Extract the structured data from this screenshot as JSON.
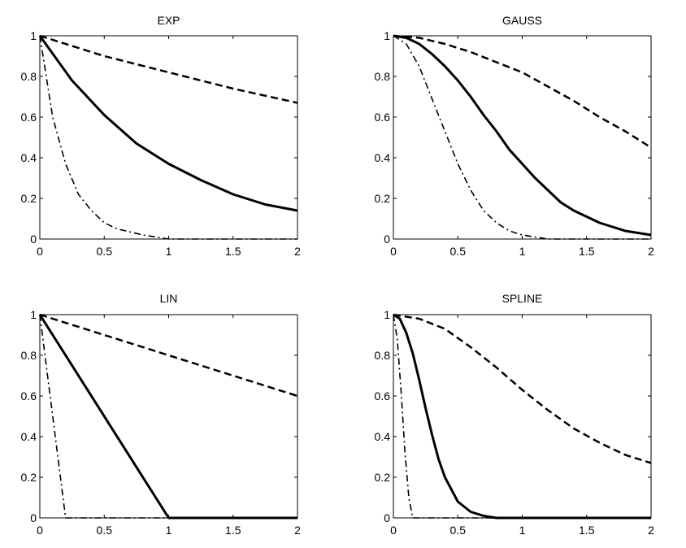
{
  "chart_data": [
    {
      "type": "line",
      "title": "EXP",
      "xlim": [
        0,
        2
      ],
      "ylim": [
        0,
        1
      ],
      "xticks": [
        "0",
        "0.5",
        "1",
        "1.5",
        "2"
      ],
      "yticks": [
        "0",
        "0.2",
        "0.4",
        "0.6",
        "0.8",
        "1"
      ],
      "grid": false,
      "series": [
        {
          "name": "solid",
          "style": "solid",
          "x": [
            0,
            0.25,
            0.5,
            0.75,
            1.0,
            1.25,
            1.5,
            1.75,
            2.0
          ],
          "y": [
            1.0,
            0.78,
            0.61,
            0.47,
            0.37,
            0.29,
            0.22,
            0.17,
            0.14
          ]
        },
        {
          "name": "dashed",
          "style": "dashed",
          "x": [
            0,
            0.5,
            1.0,
            1.5,
            2.0
          ],
          "y": [
            1.0,
            0.9,
            0.82,
            0.74,
            0.67
          ]
        },
        {
          "name": "dashdot",
          "style": "dashdot",
          "x": [
            0,
            0.1,
            0.2,
            0.3,
            0.4,
            0.5,
            0.6,
            0.8,
            1.0,
            1.5,
            2.0
          ],
          "y": [
            1.0,
            0.6,
            0.37,
            0.22,
            0.14,
            0.08,
            0.05,
            0.02,
            0.0,
            0.0,
            0.0
          ]
        }
      ]
    },
    {
      "type": "line",
      "title": "GAUSS",
      "xlim": [
        0,
        2
      ],
      "ylim": [
        0,
        1
      ],
      "xticks": [
        "0",
        "0.5",
        "1",
        "1.5",
        "2"
      ],
      "yticks": [
        "0",
        "0.2",
        "0.4",
        "0.6",
        "0.8",
        "1"
      ],
      "grid": false,
      "series": [
        {
          "name": "solid",
          "style": "solid",
          "x": [
            0,
            0.1,
            0.2,
            0.3,
            0.4,
            0.5,
            0.6,
            0.7,
            0.8,
            0.9,
            1.0,
            1.1,
            1.2,
            1.3,
            1.4,
            1.5,
            1.6,
            1.7,
            1.8,
            1.9,
            2.0
          ],
          "y": [
            1.0,
            0.99,
            0.96,
            0.91,
            0.85,
            0.78,
            0.7,
            0.61,
            0.53,
            0.44,
            0.37,
            0.3,
            0.24,
            0.18,
            0.14,
            0.11,
            0.08,
            0.06,
            0.04,
            0.03,
            0.02
          ]
        },
        {
          "name": "dashed",
          "style": "dashed",
          "x": [
            0,
            0.2,
            0.4,
            0.6,
            0.8,
            1.0,
            1.2,
            1.4,
            1.6,
            1.8,
            2.0
          ],
          "y": [
            1.0,
            0.99,
            0.96,
            0.92,
            0.87,
            0.82,
            0.75,
            0.68,
            0.6,
            0.53,
            0.45
          ]
        },
        {
          "name": "dashdot",
          "style": "dashdot",
          "x": [
            0,
            0.1,
            0.2,
            0.3,
            0.4,
            0.5,
            0.6,
            0.7,
            0.8,
            0.9,
            1.0,
            1.2,
            1.5,
            2.0
          ],
          "y": [
            1.0,
            0.96,
            0.85,
            0.69,
            0.53,
            0.37,
            0.24,
            0.14,
            0.08,
            0.04,
            0.02,
            0.0,
            0.0,
            0.0
          ]
        }
      ]
    },
    {
      "type": "line",
      "title": "LIN",
      "xlim": [
        0,
        2
      ],
      "ylim": [
        0,
        1
      ],
      "xticks": [
        "0",
        "0.5",
        "1",
        "1.5",
        "2"
      ],
      "yticks": [
        "0",
        "0.2",
        "0.4",
        "0.6",
        "0.8",
        "1"
      ],
      "grid": false,
      "series": [
        {
          "name": "solid",
          "style": "solid",
          "x": [
            0,
            1.0,
            2.0
          ],
          "y": [
            1.0,
            0.0,
            0.0
          ]
        },
        {
          "name": "dashed",
          "style": "dashed",
          "x": [
            0,
            2.0
          ],
          "y": [
            1.0,
            0.6
          ]
        },
        {
          "name": "dashdot",
          "style": "dashdot",
          "x": [
            0,
            0.2,
            2.0
          ],
          "y": [
            1.0,
            0.0,
            0.0
          ]
        }
      ]
    },
    {
      "type": "line",
      "title": "SPLINE",
      "xlim": [
        0,
        2
      ],
      "ylim": [
        0,
        1
      ],
      "xticks": [
        "0",
        "0.5",
        "1",
        "1.5",
        "2"
      ],
      "yticks": [
        "0",
        "0.2",
        "0.4",
        "0.6",
        "0.8",
        "1"
      ],
      "grid": false,
      "series": [
        {
          "name": "solid",
          "style": "solid",
          "x": [
            0,
            0.05,
            0.1,
            0.15,
            0.2,
            0.25,
            0.3,
            0.35,
            0.4,
            0.5,
            0.6,
            0.7,
            0.8,
            0.9,
            1.0,
            1.5,
            2.0
          ],
          "y": [
            1.0,
            0.98,
            0.91,
            0.81,
            0.68,
            0.54,
            0.41,
            0.29,
            0.2,
            0.08,
            0.03,
            0.01,
            0.0,
            0.0,
            0.0,
            0.0,
            0.0
          ]
        },
        {
          "name": "dashed",
          "style": "dashed",
          "x": [
            0,
            0.2,
            0.4,
            0.6,
            0.8,
            1.0,
            1.2,
            1.4,
            1.6,
            1.8,
            2.0
          ],
          "y": [
            1.0,
            0.98,
            0.93,
            0.84,
            0.74,
            0.63,
            0.53,
            0.44,
            0.37,
            0.31,
            0.27
          ]
        },
        {
          "name": "dashdot",
          "style": "dashdot",
          "x": [
            0,
            0.03,
            0.06,
            0.09,
            0.12,
            0.15,
            0.2,
            2.0
          ],
          "y": [
            1.0,
            0.88,
            0.62,
            0.32,
            0.1,
            0.0,
            0.0,
            0.0
          ]
        }
      ]
    }
  ]
}
